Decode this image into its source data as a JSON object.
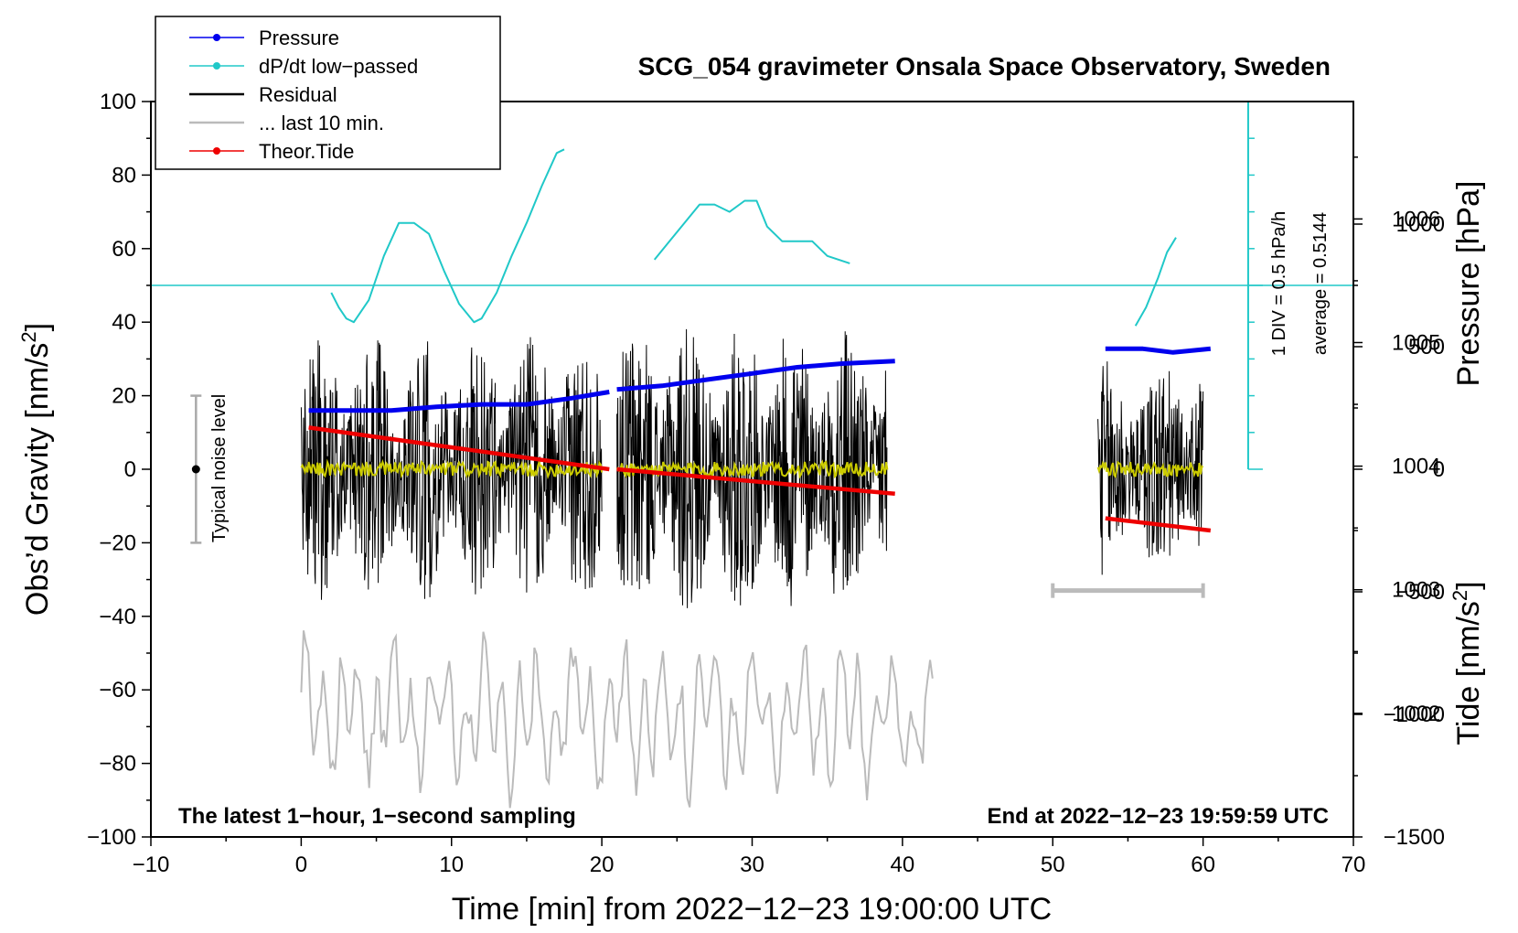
{
  "chart_data": {
    "type": "line",
    "title": "SCG_054 gravimeter Onsala Space Observatory, Sweden",
    "xlabel": "Time [min] from 2022−12−23 19:00:00 UTC",
    "ylabel_left_main": "Obs’d Gravity [nm/s",
    "ylabel_left_sup": "2",
    "ylabel_left_close": "]",
    "ylabel_right_pressure": "Pressure [hPa]",
    "ylabel_right_tide_main": "Tide [nm/s",
    "ylabel_right_tide_sup": "2",
    "ylabel_right_tide_close": "]",
    "xlim": [
      -10,
      70
    ],
    "ylim": [
      -100,
      100
    ],
    "x_ticks": [
      "−10",
      "0",
      "10",
      "20",
      "30",
      "40",
      "50",
      "60",
      "70"
    ],
    "y_ticks": [
      "−100",
      "−80",
      "−60",
      "−40",
      "−20",
      "0",
      "20",
      "40",
      "60",
      "80",
      "100"
    ],
    "pressure_axis": {
      "ticks": [
        "1002",
        "1003",
        "1004",
        "1005",
        "1006"
      ],
      "ylim": [
        1001,
        1006.95
      ]
    },
    "tide_axis": {
      "ticks": [
        "−1500",
        "−1000",
        "−500",
        "0",
        "500",
        "1000"
      ],
      "ylim": [
        -1500,
        1500
      ]
    },
    "legend": [
      {
        "label": "Pressure",
        "color": "#0000ee",
        "style": "line-dot"
      },
      {
        "label": "dP/dt low−passed",
        "color": "#20c8c8",
        "style": "line-dot"
      },
      {
        "label": "Residual",
        "color": "#000000",
        "style": "line"
      },
      {
        "label": "... last 10 min.",
        "color": "#bbbbbb",
        "style": "line"
      },
      {
        "label": "Theor.Tide",
        "color": "#ee0000",
        "style": "line-dot"
      }
    ],
    "annotations": {
      "bottom_left": "The latest 1−hour, 1−second sampling",
      "bottom_right": "End at 2022−12−23 19:59:59 UTC",
      "noise_label": "Typical noise level",
      "noise_range": [
        -20,
        20
      ],
      "div_label": "1 DIV = 0.5 hPa/h",
      "avg_label": "average = 0.5144",
      "dpdt_zero_level": 50,
      "dpdt_scale_divisions": 10,
      "range_bar": {
        "x": [
          50,
          60
        ],
        "y": -33
      }
    },
    "series": [
      {
        "name": "Pressure",
        "color": "#0000ee",
        "axis": "pressure",
        "segments": [
          {
            "x": [
              0.5,
              3,
              6,
              9,
              12,
              15,
              18,
              20.5
            ],
            "y": [
              1004.45,
              1004.45,
              1004.45,
              1004.48,
              1004.5,
              1004.5,
              1004.55,
              1004.6
            ]
          },
          {
            "x": [
              21,
              24,
              27,
              30,
              33,
              36,
              39.5
            ],
            "y": [
              1004.62,
              1004.65,
              1004.7,
              1004.75,
              1004.8,
              1004.83,
              1004.85
            ]
          },
          {
            "x": [
              53.5,
              56,
              58,
              60.5
            ],
            "y": [
              1004.95,
              1004.95,
              1004.92,
              1004.95
            ]
          }
        ]
      },
      {
        "name": "dP/dt low-passed",
        "color": "#20c8c8",
        "axis": "gravity",
        "segments": [
          {
            "x": [
              2,
              2.5,
              3,
              3.5,
              4.5,
              5.5,
              6.5,
              7.5,
              8.5,
              9.5,
              10.5,
              11.5,
              12,
              13,
              14,
              15,
              16,
              17,
              17.5
            ],
            "y": [
              48,
              44,
              41,
              40,
              46,
              58,
              67,
              67,
              64,
              54,
              45,
              40,
              41,
              48,
              58,
              67,
              77,
              86,
              87
            ]
          },
          {
            "x": [
              23.5,
              24.5,
              25.5,
              26.5,
              27.5,
              28.5,
              29.5,
              30.3,
              31,
              32,
              33,
              34,
              35,
              36.5
            ],
            "y": [
              57,
              62,
              67,
              72,
              72,
              70,
              73,
              73,
              66,
              62,
              62,
              62,
              58,
              56
            ]
          },
          {
            "x": [
              55.5,
              56.2,
              57,
              57.6,
              58.2
            ],
            "y": [
              39,
              44,
              52,
              59,
              63
            ]
          }
        ]
      },
      {
        "name": "Residual",
        "color": "#000000",
        "axis": "gravity",
        "segments": [
          {
            "x_range": [
              0,
              20
            ],
            "amplitude": 36
          },
          {
            "x_range": [
              21,
              39
            ],
            "amplitude": 40
          },
          {
            "x_range": [
              53,
              60
            ],
            "amplitude": 30
          }
        ]
      },
      {
        "name": "Residual smoothed",
        "color": "#cccc00",
        "axis": "gravity",
        "segments": [
          {
            "x_range": [
              0,
              20
            ],
            "amplitude": 2
          },
          {
            "x_range": [
              21,
              39
            ],
            "amplitude": 2
          },
          {
            "x_range": [
              53,
              60
            ],
            "amplitude": 2
          }
        ]
      },
      {
        "name": "... last 10 min.",
        "color": "#bbbbbb",
        "axis": "gravity",
        "segments": [
          {
            "x_range": [
              0,
              42
            ],
            "center": -67,
            "amplitude": 22
          }
        ]
      },
      {
        "name": "Theor.Tide",
        "color": "#ee0000",
        "axis": "tide",
        "segments": [
          {
            "x": [
              0.5,
              20.5
            ],
            "y": [
              170,
              0
            ]
          },
          {
            "x": [
              21,
              39.5
            ],
            "y": [
              0,
              -100
            ]
          },
          {
            "x": [
              53.5,
              60.5
            ],
            "y": [
              -200,
              -250
            ]
          }
        ]
      }
    ]
  }
}
